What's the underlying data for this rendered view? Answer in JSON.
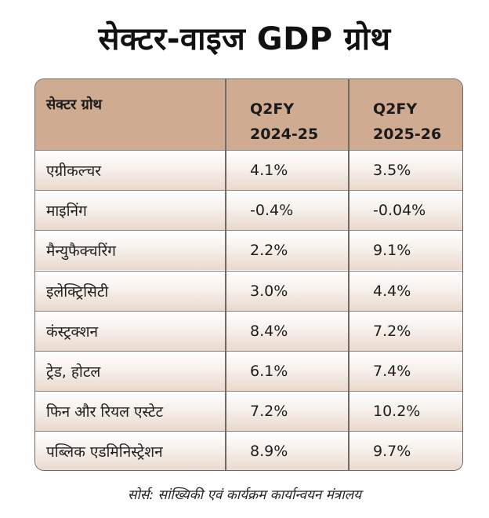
{
  "title": "सेक्टर-वाइज GDP ग्रोथ",
  "table": {
    "headers": {
      "sector": "सेक्टर ग्रोथ",
      "col1_line1": "Q2FY",
      "col1_line2": "2024-25",
      "col2_line1": "Q2FY",
      "col2_line2": "2025-26"
    },
    "rows": [
      {
        "sector": "एग्रीकल्चर",
        "fy25": "4.1%",
        "fy26": "3.5%"
      },
      {
        "sector": "माइनिंग",
        "fy25": "-0.4%",
        "fy26": "-0.04%"
      },
      {
        "sector": "मैन्युफैक्चरिंग",
        "fy25": "2.2%",
        "fy26": "9.1%"
      },
      {
        "sector": "इलेक्ट्रिसिटी",
        "fy25": "3.0%",
        "fy26": "4.4%"
      },
      {
        "sector": "कंस्ट्रक्शन",
        "fy25": "8.4%",
        "fy26": "7.2%"
      },
      {
        "sector": "ट्रेड, होटल",
        "fy25": "6.1%",
        "fy26": "7.4%"
      },
      {
        "sector": "फिन और रियल एस्टेट",
        "fy25": "7.2%",
        "fy26": "10.2%"
      },
      {
        "sector": "पब्लिक एडमिनिस्ट्रेशन",
        "fy25": "8.9%",
        "fy26": "9.7%"
      }
    ]
  },
  "source": "सोर्स: सांख्यिकी एवं कार्यक्रम कार्यान्वयन मंत्रालय",
  "colors": {
    "header_bg": "#cfab91",
    "border": "#6e6a66",
    "row_gradient_bottom": "#ead9cd"
  }
}
